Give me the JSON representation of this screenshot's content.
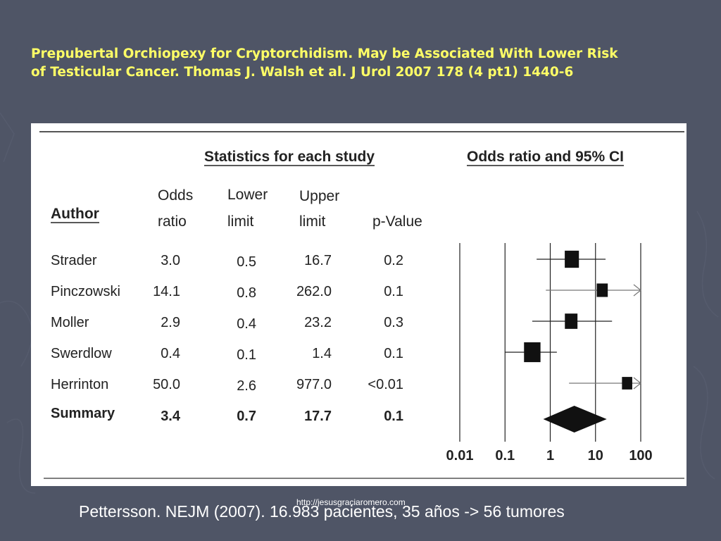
{
  "title": {
    "line1": "Prepubertal Orchiopexy for Cryptorchidism. May be Associated With Lower Risk",
    "line2": "of Testicular Cancer. Thomas J. Walsh et al. J Urol 2007 178 (4 pt1) 1440-6"
  },
  "url_note": "http://jesusgraciaromero.com",
  "footer_caption": "Pettersson. NEJM (2007). 16.983 pacientes, 35 años -> 56 tumores",
  "colors": {
    "background": "#4f5566",
    "title": "#ffff66",
    "panel": "#ffffff",
    "ink": "#222222"
  },
  "chart_data": {
    "type": "forest",
    "table_title": "Statistics for each study",
    "plot_title": "Odds ratio and 95% CI",
    "columns": {
      "author": "Author",
      "odds_ratio": [
        "Odds",
        "ratio"
      ],
      "lower": [
        "Lower",
        "limit"
      ],
      "upper": [
        "Upper",
        "limit"
      ],
      "p_value": "p-Value"
    },
    "x_scale": "log",
    "x_ticks": [
      "0.01",
      "0.1",
      "1",
      "10",
      "100"
    ],
    "xlim": [
      0.01,
      100
    ],
    "studies": [
      {
        "author": "Strader",
        "or": "3.0",
        "lower": "0.5",
        "upper": "16.7",
        "p": "0.2",
        "weight": 0.55,
        "arrow": false
      },
      {
        "author": "Pinczowski",
        "or": "14.1",
        "lower": "0.8",
        "upper": "262.0",
        "p": "0.1",
        "weight": 0.35,
        "arrow": true
      },
      {
        "author": "Moller",
        "or": "2.9",
        "lower": "0.4",
        "upper": "23.2",
        "p": "0.3",
        "weight": 0.45,
        "arrow": false
      },
      {
        "author": "Swerdlow",
        "or": "0.4",
        "lower": "0.1",
        "upper": "1.4",
        "p": "0.1",
        "weight": 0.7,
        "arrow": false
      },
      {
        "author": "Herrinton",
        "or": "50.0",
        "lower": "2.6",
        "upper": "977.0",
        "p": "<0.01",
        "weight": 0.3,
        "arrow": true
      }
    ],
    "summary": {
      "author": "Summary",
      "or": "3.4",
      "lower": "0.7",
      "upper": "17.7",
      "p": "0.1"
    }
  }
}
